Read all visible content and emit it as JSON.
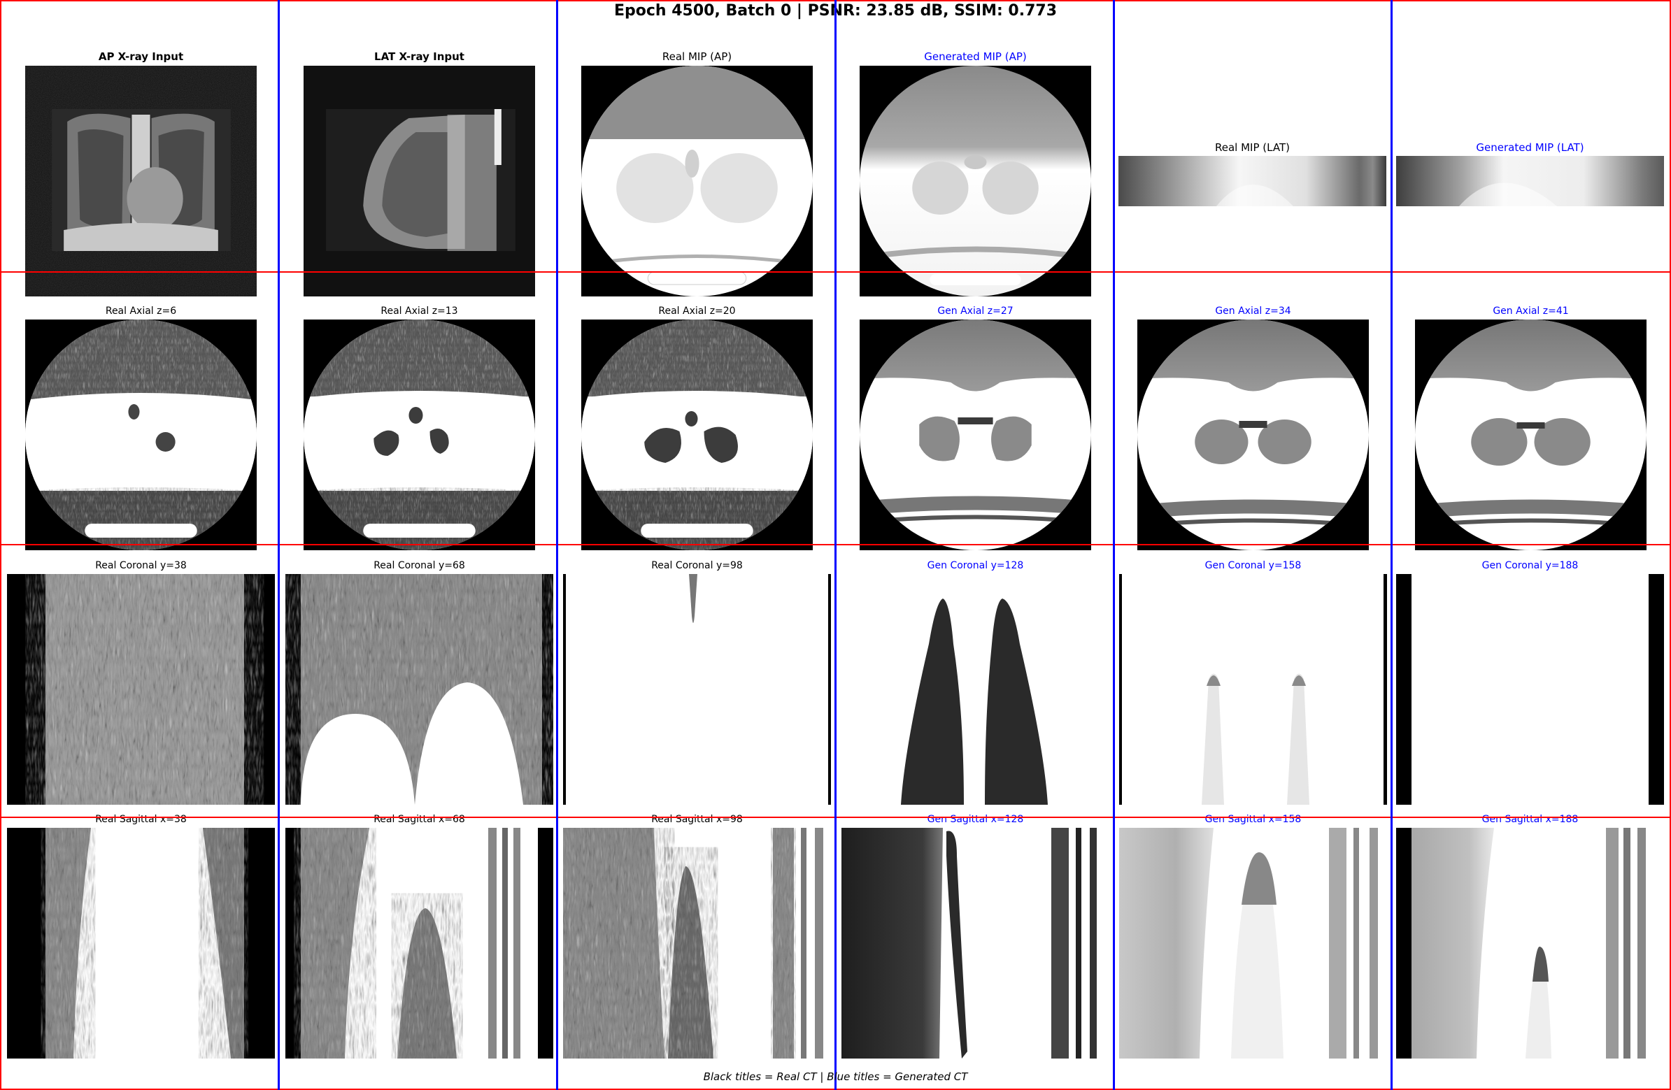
{
  "figure": {
    "title": "Epoch 4500, Batch 0 | PSNR: 23.85 dB, SSIM: 0.773",
    "footer": "Black titles = Real CT | Blue titles = Generated CT"
  },
  "rows": [
    {
      "name": "inputs-and-mips",
      "panels": [
        {
          "title": "AP X-ray Input",
          "kind": "real",
          "image": "ap-xray-chest"
        },
        {
          "title": "LAT X-ray Input",
          "kind": "real",
          "image": "lateral-xray-chest"
        },
        {
          "title": "Real MIP (AP)",
          "kind": "real",
          "image": "mip-ap-circle"
        },
        {
          "title": "Generated MIP (AP)",
          "kind": "gen",
          "image": "mip-ap-circle-smooth"
        },
        {
          "title": "Real MIP (LAT)",
          "kind": "real",
          "image": "mip-lat-strip"
        },
        {
          "title": "Generated MIP (LAT)",
          "kind": "gen",
          "image": "mip-lat-strip-smooth"
        }
      ]
    },
    {
      "name": "axial",
      "panels": [
        {
          "title": "Real Axial z=6",
          "kind": "real",
          "image": "axial-slice-noisy"
        },
        {
          "title": "Real Axial z=13",
          "kind": "real",
          "image": "axial-slice-noisy"
        },
        {
          "title": "Real Axial z=20",
          "kind": "real",
          "image": "axial-slice-noisy"
        },
        {
          "title": "Gen Axial z=27",
          "kind": "gen",
          "image": "axial-slice-smooth"
        },
        {
          "title": "Gen Axial z=34",
          "kind": "gen",
          "image": "axial-slice-smooth"
        },
        {
          "title": "Gen Axial z=41",
          "kind": "gen",
          "image": "axial-slice-smooth"
        }
      ]
    },
    {
      "name": "coronal",
      "panels": [
        {
          "title": "Real Coronal y=38",
          "kind": "real",
          "image": "coronal-noise"
        },
        {
          "title": "Real Coronal y=68",
          "kind": "real",
          "image": "coronal-noise-arches"
        },
        {
          "title": "Real Coronal y=98",
          "kind": "real",
          "image": "coronal-white"
        },
        {
          "title": "Gen Coronal y=128",
          "kind": "gen",
          "image": "coronal-dark-lungs"
        },
        {
          "title": "Gen Coronal y=158",
          "kind": "gen",
          "image": "coronal-faint-peaks"
        },
        {
          "title": "Gen Coronal y=188",
          "kind": "gen",
          "image": "coronal-blank"
        }
      ]
    },
    {
      "name": "sagittal",
      "panels": [
        {
          "title": "Real Sagittal x=38",
          "kind": "real",
          "image": "sagittal-noise"
        },
        {
          "title": "Real Sagittal x=68",
          "kind": "real",
          "image": "sagittal-noise-peak"
        },
        {
          "title": "Real Sagittal x=98",
          "kind": "real",
          "image": "sagittal-noise-wide"
        },
        {
          "title": "Gen Sagittal x=128",
          "kind": "gen",
          "image": "sagittal-dark"
        },
        {
          "title": "Gen Sagittal x=158",
          "kind": "gen",
          "image": "sagittal-gray-peak"
        },
        {
          "title": "Gen Sagittal x=188",
          "kind": "gen",
          "image": "sagittal-gray-small"
        }
      ]
    }
  ]
}
